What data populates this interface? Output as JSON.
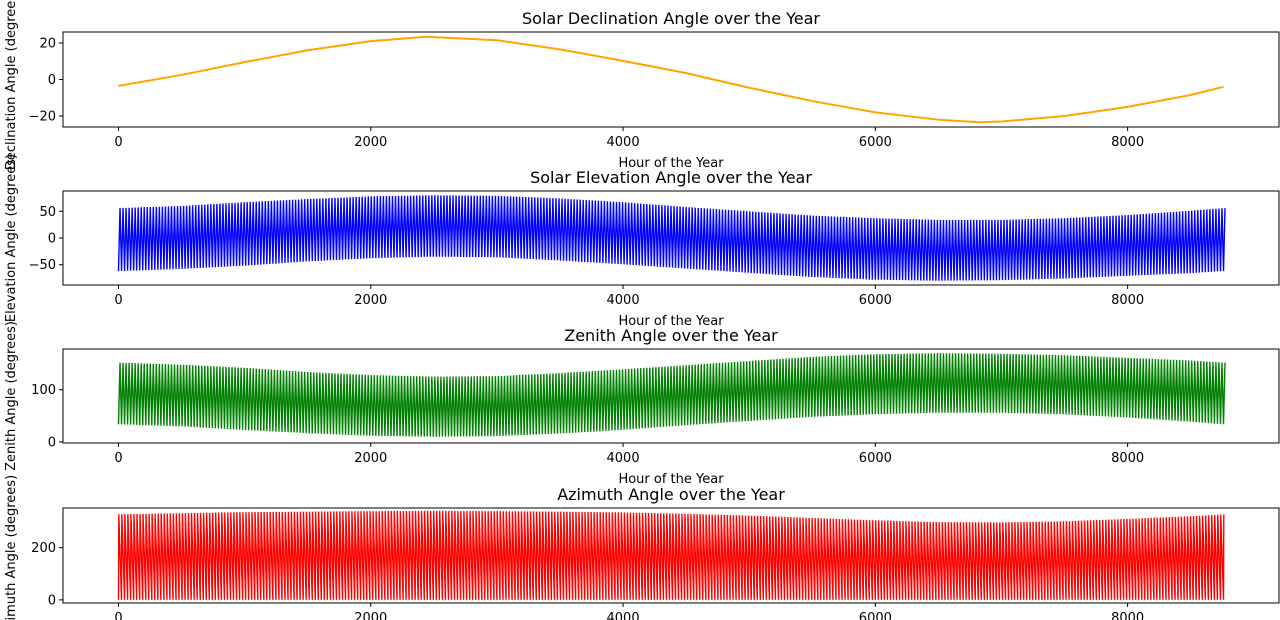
{
  "chart_data": [
    {
      "type": "line",
      "title": "Solar Declination Angle over the Year",
      "xlabel": "Hour of the Year",
      "ylabel": "Declination Angle (degrees)",
      "xlim": [
        -440,
        9200
      ],
      "ylim": [
        -26,
        26
      ],
      "xticks": [
        0,
        2000,
        4000,
        6000,
        8000
      ],
      "yticks": [
        -20,
        0,
        20
      ],
      "color": "#ffa500",
      "series_kind": "smooth",
      "series": [
        {
          "x": [
            0,
            500,
            1000,
            1500,
            2000,
            2440,
            3000,
            3500,
            4000,
            4500,
            5000,
            5500,
            6000,
            6500,
            6820,
            7000,
            7500,
            8000,
            8500,
            8760
          ],
          "y": [
            -3.5,
            2.5,
            9.5,
            16,
            21,
            23.4,
            21.5,
            16.5,
            10.2,
            3.5,
            -4.5,
            -11.8,
            -18,
            -22,
            -23.4,
            -23,
            -20,
            -15,
            -8.5,
            -4
          ]
        }
      ]
    },
    {
      "type": "line",
      "title": "Solar Elevation Angle over the Year",
      "xlabel": "Hour of the Year",
      "ylabel": "Elevation Angle (degrees)",
      "xlim": [
        -440,
        9200
      ],
      "ylim": [
        -88,
        88
      ],
      "xticks": [
        0,
        2000,
        4000,
        6000,
        8000
      ],
      "yticks": [
        -50,
        0,
        50
      ],
      "color": "#0000ff",
      "series_kind": "daily-oscillation",
      "series": [
        {
          "x": [
            0,
            500,
            1000,
            1500,
            2000,
            2500,
            3000,
            3500,
            4000,
            4500,
            5000,
            5500,
            6000,
            6500,
            7000,
            7500,
            8000,
            8500,
            8760
          ],
          "upper": [
            56,
            60,
            67,
            73,
            78,
            80,
            79,
            74,
            67,
            58,
            50,
            42,
            37,
            34,
            34,
            37,
            43,
            51,
            56
          ],
          "lower": [
            -62,
            -58,
            -52,
            -44,
            -38,
            -35,
            -36,
            -42,
            -49,
            -57,
            -65,
            -73,
            -78,
            -80,
            -79,
            -76,
            -71,
            -66,
            -62
          ]
        }
      ]
    },
    {
      "type": "line",
      "title": "Zenith Angle over the Year",
      "xlabel": "Hour of the Year",
      "ylabel": "Zenith Angle (degrees)",
      "xlim": [
        -440,
        9200
      ],
      "ylim": [
        -2,
        178
      ],
      "xticks": [
        0,
        2000,
        4000,
        6000,
        8000
      ],
      "yticks": [
        0,
        100
      ],
      "color": "#008000",
      "series_kind": "daily-oscillation",
      "series": [
        {
          "x": [
            0,
            500,
            1000,
            1500,
            2000,
            2500,
            3000,
            3500,
            4000,
            4500,
            5000,
            5500,
            6000,
            6500,
            7000,
            7500,
            8000,
            8500,
            8760
          ],
          "upper": [
            152,
            148,
            142,
            134,
            128,
            125,
            126,
            132,
            139,
            147,
            155,
            163,
            168,
            170,
            169,
            166,
            161,
            156,
            152
          ],
          "lower": [
            34,
            30,
            23,
            17,
            12,
            10,
            11,
            16,
            23,
            32,
            40,
            48,
            53,
            56,
            56,
            53,
            47,
            39,
            34
          ]
        }
      ]
    },
    {
      "type": "line",
      "title": "Azimuth Angle over the Year",
      "xlabel": "Hour of the Year",
      "ylabel": "Azimuth Angle (degrees)",
      "xlim": [
        -440,
        9200
      ],
      "ylim": [
        -12,
        352
      ],
      "xticks": [
        0,
        2000,
        4000,
        6000,
        8000
      ],
      "yticks": [
        0,
        200
      ],
      "color": "#ff0000",
      "series_kind": "daily-sweep",
      "series": [
        {
          "x": [
            0,
            500,
            1000,
            1500,
            2000,
            2500,
            3000,
            3500,
            4000,
            4500,
            5000,
            5500,
            6000,
            6500,
            7000,
            7500,
            8000,
            8500,
            8760
          ],
          "upper": [
            328,
            332,
            336,
            338,
            340,
            341,
            340,
            338,
            335,
            330,
            323,
            314,
            305,
            298,
            297,
            301,
            310,
            320,
            327
          ],
          "lower": [
            0,
            0,
            0,
            0,
            0,
            0,
            0,
            0,
            0,
            0,
            0,
            0,
            0,
            0,
            0,
            0,
            0,
            0,
            0
          ]
        }
      ]
    }
  ]
}
